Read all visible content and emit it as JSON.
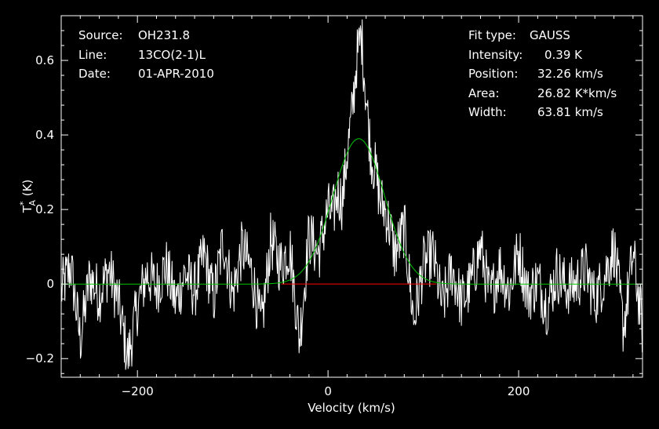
{
  "info_left": [
    {
      "key": "Source:",
      "value": "OH231.8"
    },
    {
      "key": "Line:",
      "value": "13CO(2-1)L"
    },
    {
      "key": "Date:",
      "value": "01-APR-2010"
    }
  ],
  "info_right": [
    {
      "key": "Fit type:",
      "value": "GAUSS"
    },
    {
      "key": "Intensity:",
      "value": "0.39 K"
    },
    {
      "key": "Position:",
      "value": "32.26 km/s"
    },
    {
      "key": "Area:",
      "value": "26.82 K*km/s"
    },
    {
      "key": "Width:",
      "value": "63.81 km/s"
    }
  ],
  "chart_data": {
    "type": "line",
    "xlabel": "Velocity (km/s)",
    "ylabel_main": "T",
    "ylabel_sup": "*",
    "ylabel_sub": "A",
    "ylabel_unit": " (K)",
    "xlim": [
      -280,
      330
    ],
    "ylim": [
      -0.25,
      0.72
    ],
    "xticks": [
      -200,
      0,
      200
    ],
    "xtick_labels": [
      "−200",
      "0",
      "200"
    ],
    "yticks": [
      -0.2,
      0,
      0.2,
      0.4,
      0.6
    ],
    "ytick_labels": [
      "−0.2",
      "0",
      "0.2",
      "0.4",
      "0.6"
    ],
    "grid": false,
    "colors": {
      "spectrum": "#ffffff",
      "fit": "#00c800",
      "baseline": "#ff0000",
      "axes": "#ffffff",
      "background": "#000000"
    },
    "series": [
      {
        "kind": "spectrum",
        "x": [
          -280,
          -270,
          -260,
          -250,
          -240,
          -230,
          -220,
          -210,
          -200,
          -190,
          -180,
          -170,
          -160,
          -150,
          -140,
          -130,
          -120,
          -110,
          -100,
          -90,
          -80,
          -70,
          -60,
          -50,
          -40,
          -30,
          -20,
          -10,
          0,
          5,
          10,
          15,
          20,
          25,
          30,
          35,
          40,
          45,
          50,
          55,
          60,
          65,
          70,
          80,
          90,
          100,
          110,
          120,
          130,
          140,
          150,
          160,
          170,
          180,
          190,
          200,
          210,
          220,
          230,
          240,
          250,
          260,
          270,
          280,
          290,
          300,
          310,
          320,
          330
        ],
        "y": [
          -0.02,
          0.05,
          -0.15,
          0.02,
          -0.03,
          0.04,
          -0.05,
          -0.2,
          -0.06,
          0.03,
          -0.01,
          0.05,
          -0.05,
          0.03,
          -0.02,
          0.08,
          -0.04,
          0.12,
          -0.03,
          0.1,
          0.03,
          -0.12,
          0.12,
          0.05,
          0.1,
          -0.15,
          0.13,
          0.08,
          0.2,
          0.18,
          0.25,
          0.22,
          0.35,
          0.45,
          0.6,
          0.67,
          0.5,
          0.35,
          0.3,
          0.22,
          0.2,
          0.15,
          0.08,
          0.15,
          -0.1,
          0.05,
          0.08,
          -0.06,
          0.04,
          -0.05,
          0.0,
          0.1,
          -0.04,
          0.05,
          -0.02,
          0.09,
          -0.03,
          0.01,
          -0.06,
          0.03,
          -0.01,
          0.0,
          0.04,
          -0.04,
          0.02,
          0.1,
          -0.12,
          0.08,
          -0.12
        ]
      },
      {
        "kind": "gaussian_fit",
        "amplitude": 0.39,
        "center": 32.26,
        "fwhm": 63.81
      },
      {
        "kind": "baseline",
        "y": 0
      }
    ]
  }
}
